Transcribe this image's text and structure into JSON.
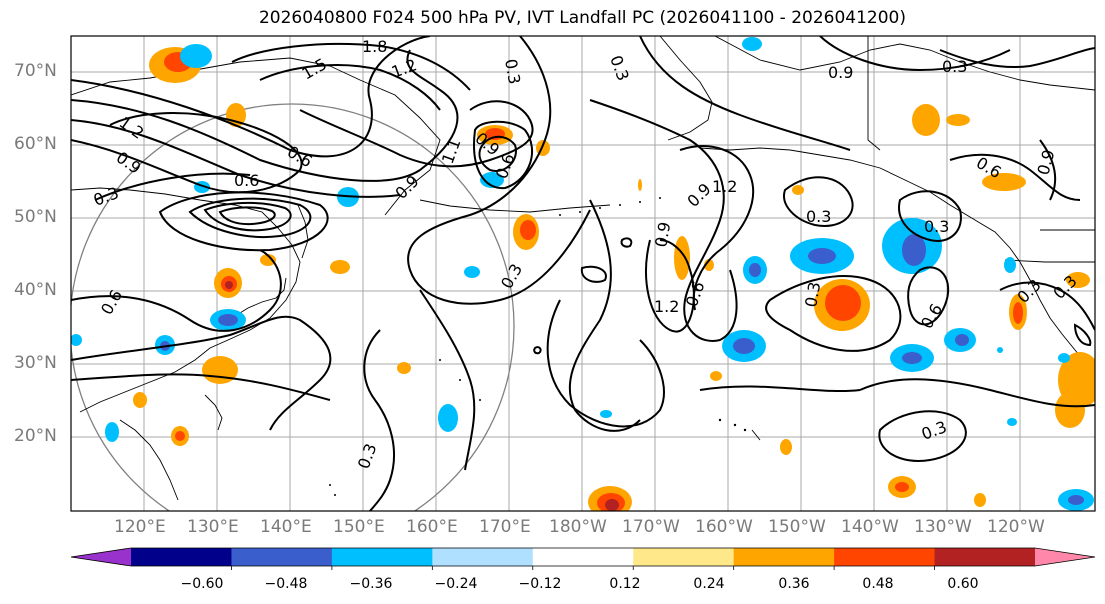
{
  "title": "2026040800 F024 500 hPa PV, IVT Landfall PC (2026041100 - 2026041200)",
  "lat_axis": [
    "70°N",
    "60°N",
    "50°N",
    "40°N",
    "30°N",
    "20°N"
  ],
  "lon_axis": [
    "120°E",
    "130°E",
    "140°E",
    "150°E",
    "160°E",
    "170°E",
    "180°W",
    "170°W",
    "160°W",
    "150°W",
    "140°W",
    "130°W",
    "120°W"
  ],
  "contour_labels": [
    "1.8",
    "1.5",
    "1.2",
    "0.3",
    "0.9",
    "0.3",
    "1.2",
    "0.9",
    "0.6",
    "0.3",
    "0.6",
    "0.9",
    "1.1",
    "0.9",
    "0.6",
    "0.3",
    "0.3",
    "0.6",
    "0.3",
    "0.9",
    "1.2",
    "0.9",
    "1.2",
    "0.6",
    "0.3",
    "0.3",
    "0.3",
    "0.6",
    "0.3",
    "0.6",
    "0.3",
    "0.9",
    "0.3"
  ],
  "colorbar": {
    "ticks": [
      "−0.60",
      "−0.48",
      "−0.36",
      "−0.24",
      "−0.12",
      "0.12",
      "0.24",
      "0.36",
      "0.48",
      "0.60"
    ],
    "colors": [
      "#9932CC",
      "#00008B",
      "#3A5FCD",
      "#00BFFF",
      "#B0E0FF",
      "#FFFFFF",
      "#FFE88A",
      "#FFA500",
      "#FF4500",
      "#B22222",
      "#FF88AA"
    ]
  }
}
